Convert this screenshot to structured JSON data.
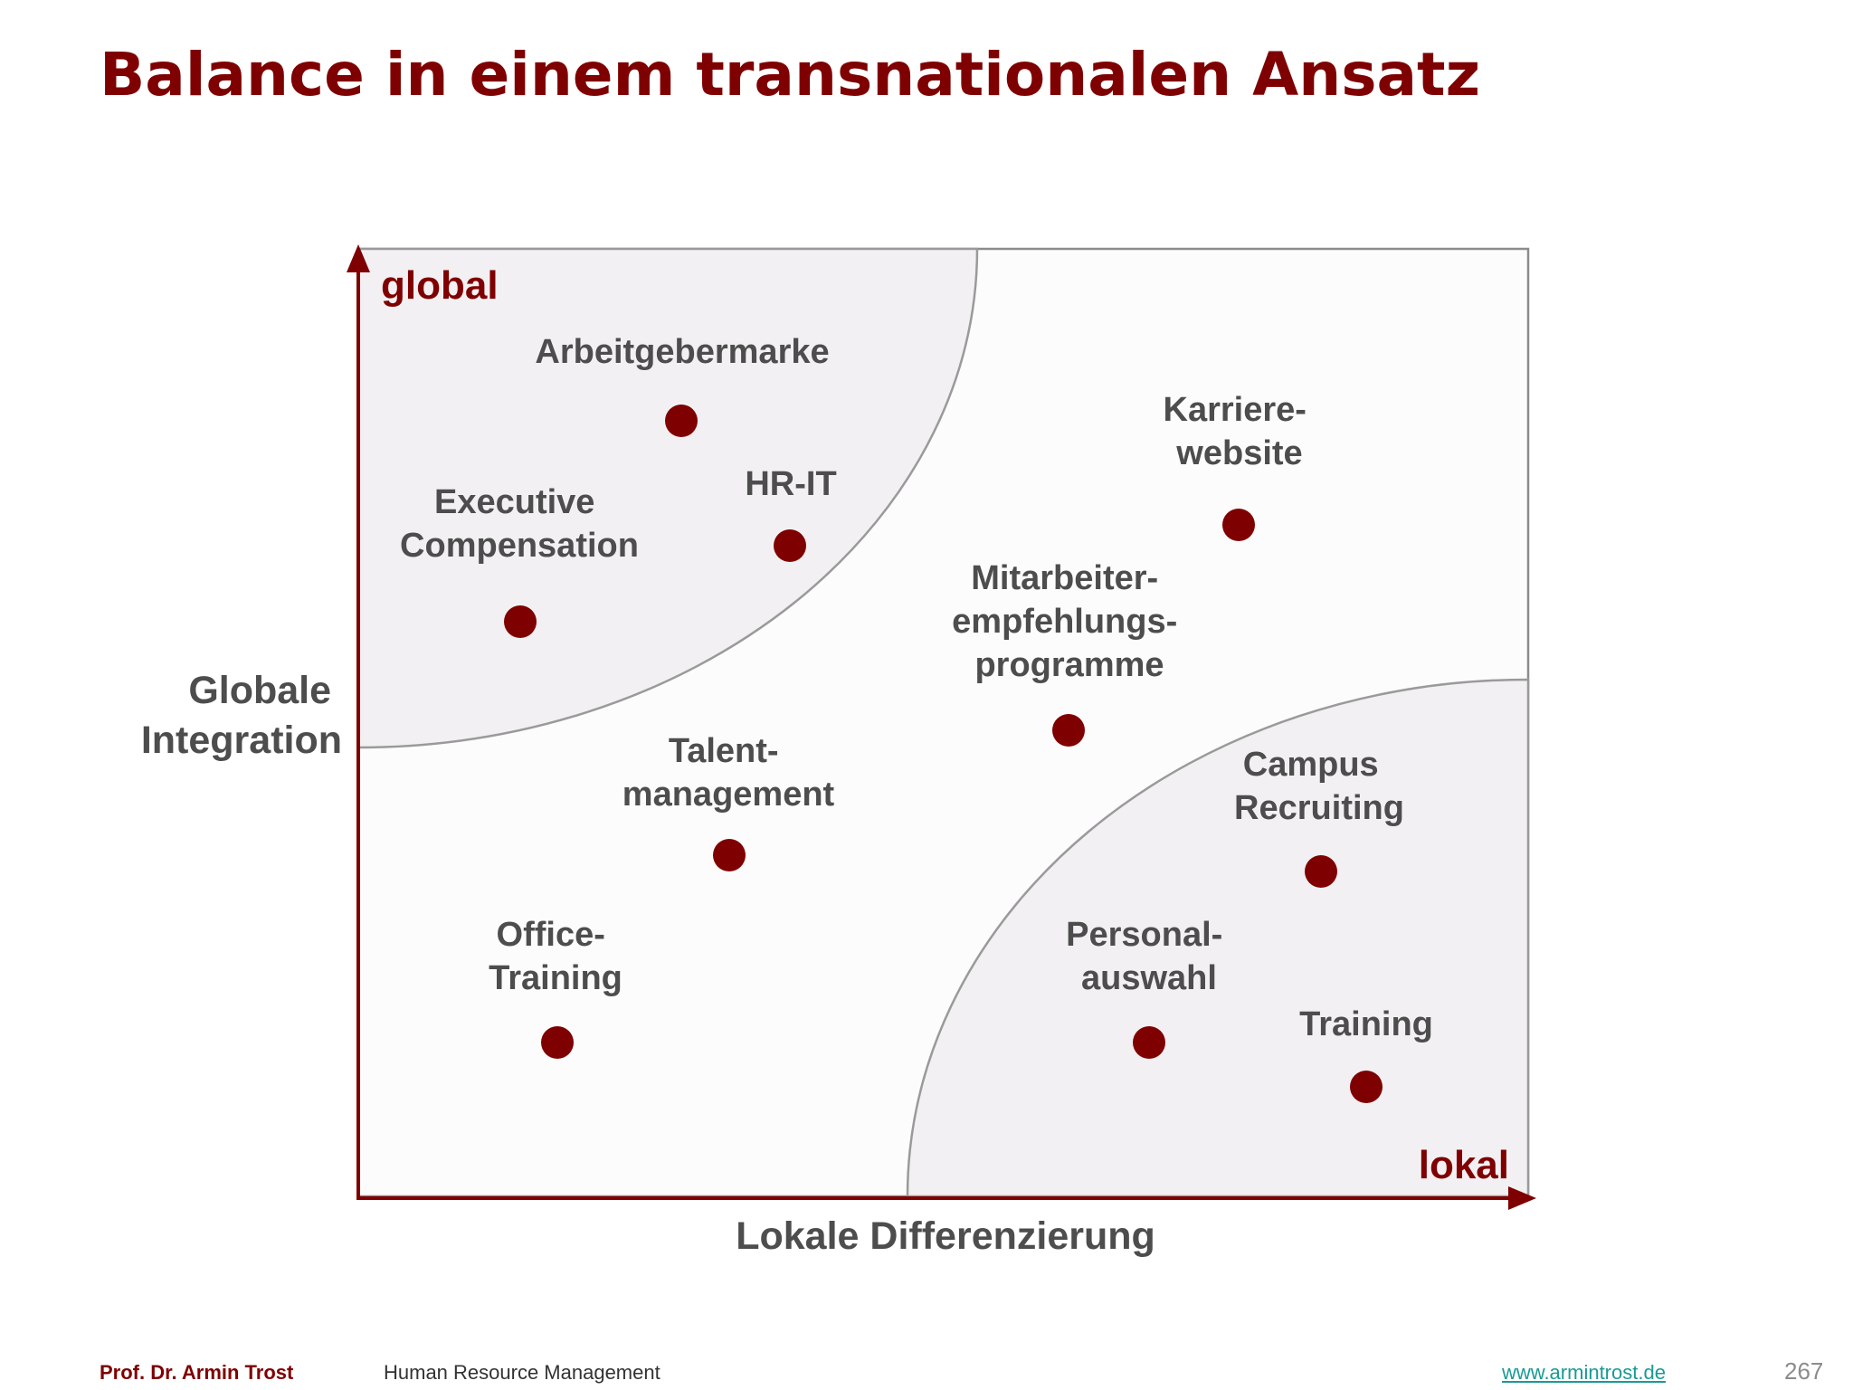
{
  "slide": {
    "title": "Balance in einem transnationalen Ansatz"
  },
  "axes": {
    "y_title_lines": [
      "Globale",
      "Integration"
    ],
    "x_title": "Lokale Differenzierung",
    "y_end_label": "global",
    "x_end_label": "lokal"
  },
  "colors": {
    "accent": "#7f0000",
    "label": "#4d4d4d",
    "zone_fill": "#f2f0f2",
    "zone_stroke": "#9a9a9a",
    "frame": "#8c8c8c"
  },
  "items": [
    {
      "id": "arbeitgebermarke",
      "label_lines": [
        "Arbeitgebermarke"
      ]
    },
    {
      "id": "executive-compensation",
      "label_lines": [
        "Executive",
        "Compensation"
      ]
    },
    {
      "id": "hr-it",
      "label_lines": [
        "HR-IT"
      ]
    },
    {
      "id": "karriere-website",
      "label_lines": [
        "Karriere-",
        "website"
      ]
    },
    {
      "id": "mitarbeiterempfehlungsprogramme",
      "label_lines": [
        "Mitarbeiter-",
        "empfehlungs-",
        "programme"
      ]
    },
    {
      "id": "talentmanagement",
      "label_lines": [
        "Talent-",
        "management"
      ]
    },
    {
      "id": "campus-recruiting",
      "label_lines": [
        "Campus",
        "Recruiting"
      ]
    },
    {
      "id": "office-training",
      "label_lines": [
        "Office-",
        "Training"
      ]
    },
    {
      "id": "personalauswahl",
      "label_lines": [
        "Personal-",
        "auswahl"
      ]
    },
    {
      "id": "training",
      "label_lines": [
        "Training"
      ]
    }
  ],
  "footer": {
    "author": "Prof. Dr. Armin Trost",
    "course": "Human Resource Management",
    "website": "www.armintrost.de",
    "page_number": "267"
  }
}
